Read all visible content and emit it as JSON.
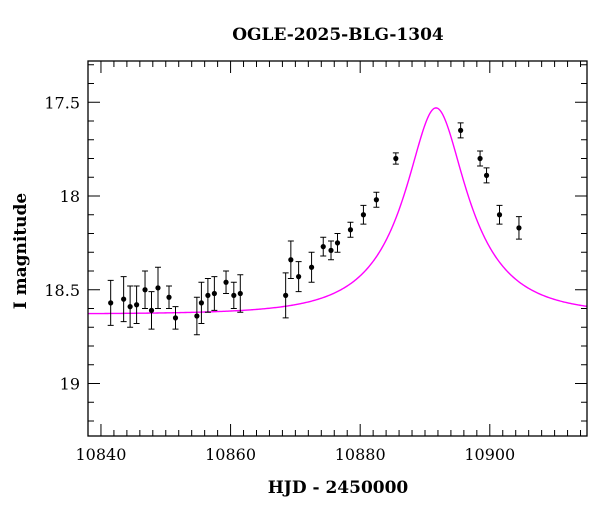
{
  "chart_data": {
    "type": "scatter",
    "title": "OGLE-2025-BLG-1304",
    "xlabel": "HJD - 2450000",
    "ylabel": "I magnitude",
    "xlim": [
      10838,
      10915
    ],
    "ylim": [
      19.28,
      17.28
    ],
    "y_inverted": true,
    "grid": false,
    "x_ticks": [
      10840,
      10860,
      10880,
      10900
    ],
    "x_tick_labels": [
      "10840",
      "10860",
      "10880",
      "10900"
    ],
    "y_ticks": [
      17.5,
      18,
      18.5,
      19
    ],
    "y_tick_labels": [
      "17.5",
      "18",
      "18.5",
      "19"
    ],
    "colors": {
      "points": "#000000",
      "model": "#ff00ff",
      "axes": "#000000"
    },
    "series": [
      {
        "kind": "points_with_errorbars",
        "points": [
          {
            "x": 10841.5,
            "y": 18.57,
            "err": 0.12
          },
          {
            "x": 10843.5,
            "y": 18.55,
            "err": 0.12
          },
          {
            "x": 10844.5,
            "y": 18.59,
            "err": 0.11
          },
          {
            "x": 10845.5,
            "y": 18.58,
            "err": 0.1
          },
          {
            "x": 10846.8,
            "y": 18.5,
            "err": 0.1
          },
          {
            "x": 10847.8,
            "y": 18.61,
            "err": 0.1
          },
          {
            "x": 10848.8,
            "y": 18.49,
            "err": 0.11
          },
          {
            "x": 10850.5,
            "y": 18.54,
            "err": 0.06
          },
          {
            "x": 10851.5,
            "y": 18.65,
            "err": 0.06
          },
          {
            "x": 10854.8,
            "y": 18.64,
            "err": 0.1
          },
          {
            "x": 10855.5,
            "y": 18.57,
            "err": 0.11
          },
          {
            "x": 10856.5,
            "y": 18.53,
            "err": 0.09
          },
          {
            "x": 10857.5,
            "y": 18.52,
            "err": 0.09
          },
          {
            "x": 10859.3,
            "y": 18.46,
            "err": 0.06
          },
          {
            "x": 10860.5,
            "y": 18.53,
            "err": 0.07
          },
          {
            "x": 10861.5,
            "y": 18.52,
            "err": 0.1
          },
          {
            "x": 10868.5,
            "y": 18.53,
            "err": 0.12
          },
          {
            "x": 10869.3,
            "y": 18.34,
            "err": 0.1
          },
          {
            "x": 10870.5,
            "y": 18.43,
            "err": 0.08
          },
          {
            "x": 10872.5,
            "y": 18.38,
            "err": 0.08
          },
          {
            "x": 10874.3,
            "y": 18.27,
            "err": 0.05
          },
          {
            "x": 10875.5,
            "y": 18.29,
            "err": 0.05
          },
          {
            "x": 10876.5,
            "y": 18.25,
            "err": 0.05
          },
          {
            "x": 10878.5,
            "y": 18.18,
            "err": 0.04
          },
          {
            "x": 10880.5,
            "y": 18.1,
            "err": 0.05
          },
          {
            "x": 10882.5,
            "y": 18.02,
            "err": 0.04
          },
          {
            "x": 10885.5,
            "y": 17.8,
            "err": 0.03
          },
          {
            "x": 10895.5,
            "y": 17.65,
            "err": 0.04
          },
          {
            "x": 10898.5,
            "y": 17.8,
            "err": 0.04
          },
          {
            "x": 10899.5,
            "y": 17.89,
            "err": 0.04
          },
          {
            "x": 10901.5,
            "y": 18.1,
            "err": 0.05
          },
          {
            "x": 10904.5,
            "y": 18.17,
            "err": 0.06
          }
        ]
      },
      {
        "kind": "model_curve",
        "t0": 10891.7,
        "tE": 12.0,
        "u0": 0.4,
        "peak_mag": 17.53,
        "baseline_mag": 18.63
      }
    ]
  }
}
